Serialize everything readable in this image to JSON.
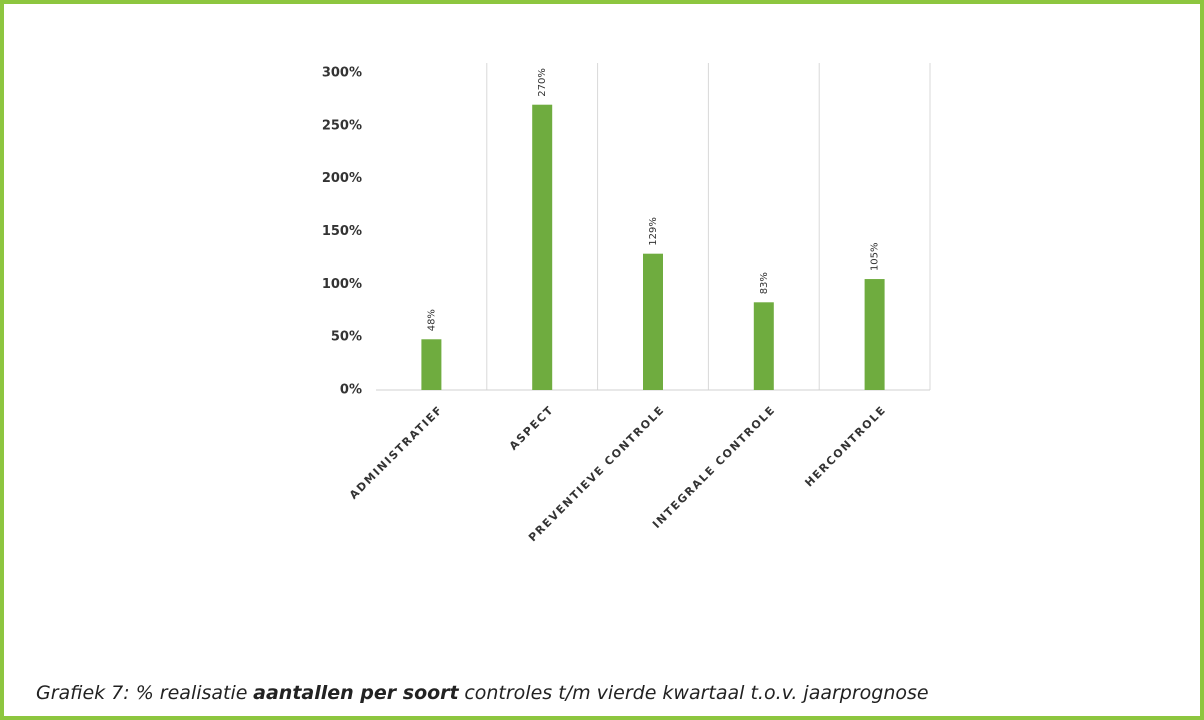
{
  "chart_data": {
    "type": "bar",
    "categories": [
      "ADMINISTRATIEF",
      "ASPECT",
      "PREVENTIEVE CONTROLE",
      "INTEGRALE CONTROLE",
      "HERCONTROLE"
    ],
    "values": [
      48,
      270,
      129,
      83,
      105
    ],
    "value_labels": [
      "48%",
      "270%",
      "129%",
      "83%",
      "105%"
    ],
    "color": "#6fac3f",
    "ylim": [
      0,
      300
    ],
    "yticks": [
      {
        "value": 0,
        "label": "0%"
      },
      {
        "value": 50,
        "label": "50%"
      },
      {
        "value": 100,
        "label": "100%"
      },
      {
        "value": 150,
        "label": "150%"
      },
      {
        "value": 200,
        "label": "200%"
      },
      {
        "value": 250,
        "label": "250%"
      },
      {
        "value": 300,
        "label": "300%"
      }
    ],
    "grid": false
  },
  "caption": [
    "Grafiek 7: % realisatie",
    "aantallen per soort",
    "controles t/m vierde kwartaal t.o.v. jaarprognose"
  ]
}
